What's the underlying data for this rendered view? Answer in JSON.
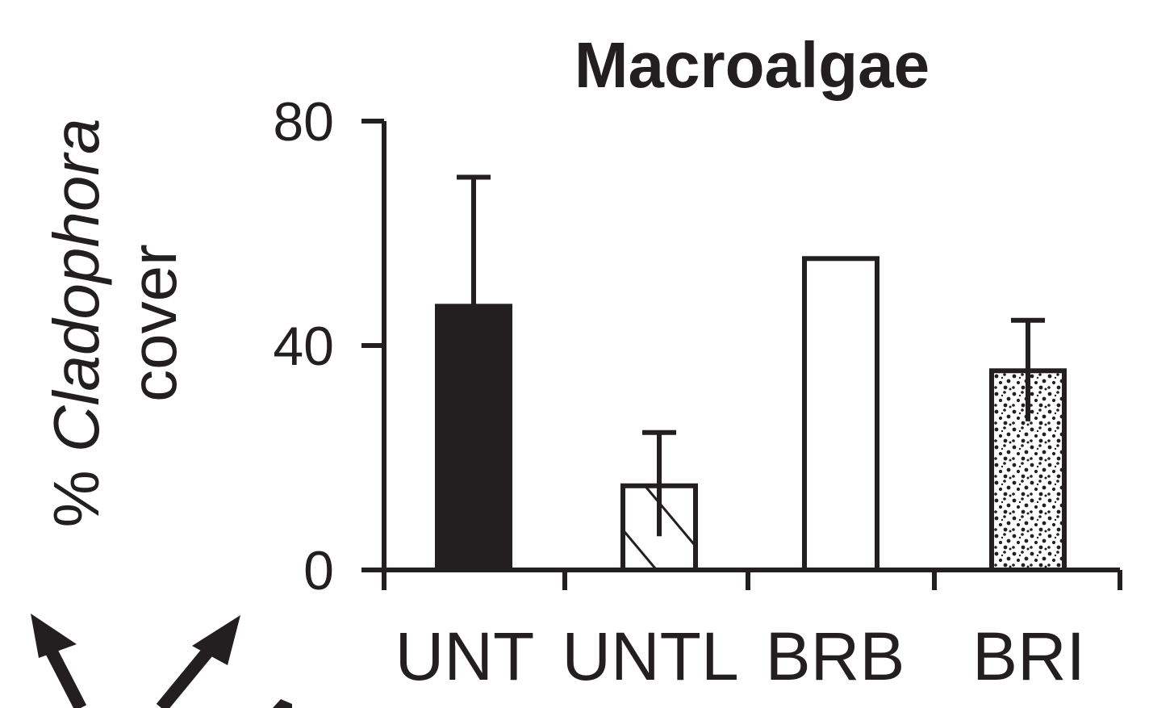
{
  "chart_data": {
    "type": "bar",
    "title": "Macroalgae",
    "ylabel_prefix": "% ",
    "ylabel_italic": "Cladophora",
    "ylabel_suffix": "cover",
    "ylim": [
      0,
      80
    ],
    "yticks": [
      "0",
      "40",
      "80"
    ],
    "categories": [
      "UNT",
      "UNTL",
      "BRB",
      "BRI"
    ],
    "values": [
      47,
      15,
      55.5,
      35.5
    ],
    "error_upper": [
      70,
      24.5,
      null,
      44.5
    ],
    "error_lower": [
      null,
      6,
      null,
      26.5
    ],
    "fills": [
      "solid-black",
      "diagonal-hatch",
      "white",
      "stipple"
    ],
    "colors": {
      "ink": "#231f20",
      "background": "#ffffff"
    },
    "grid": false,
    "legend": "none"
  },
  "decor": {
    "arrows": "partial-black-arrows-bottom-left"
  }
}
